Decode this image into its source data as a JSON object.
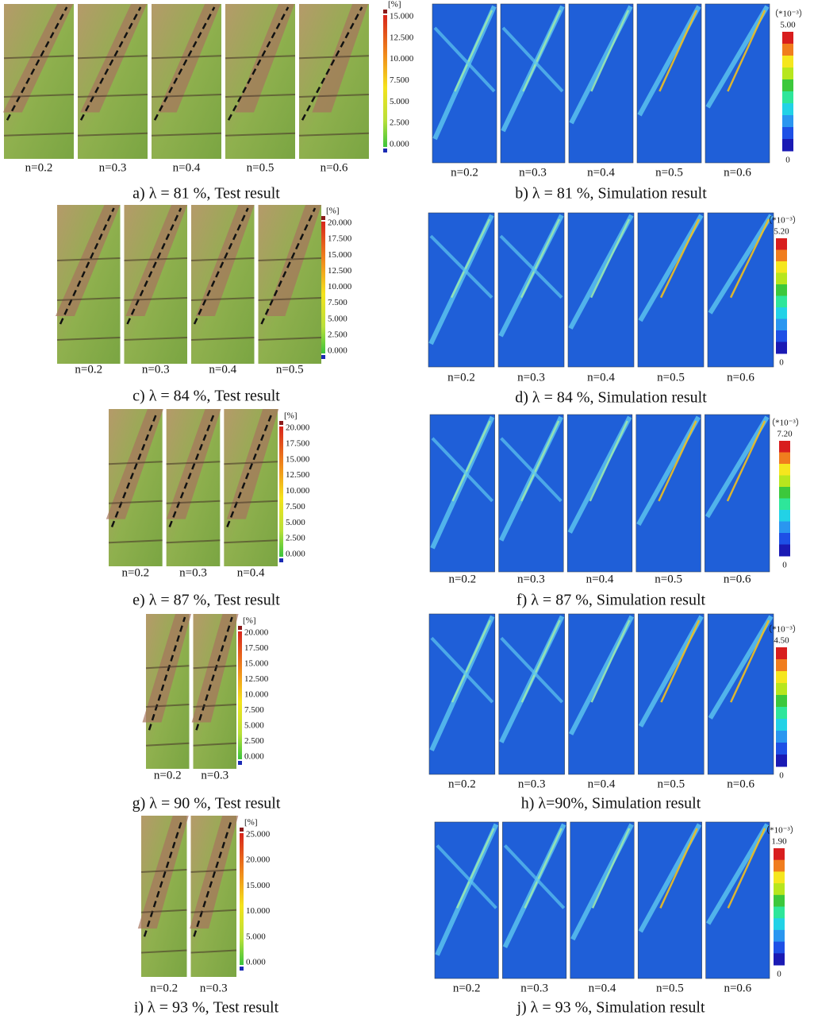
{
  "panels": [
    {
      "caption": "a) λ = 81 %, Test result",
      "images": [
        "n=0.2",
        "n=0.3",
        "n=0.4",
        "n=0.5",
        "n=0.6"
      ],
      "colorbar": {
        "unit": "[%]",
        "ticks": [
          "15.000",
          "12.500",
          "10.000",
          "7.500",
          "5.000",
          "2.500",
          "0.000"
        ]
      }
    },
    {
      "caption": "b) λ = 81 %, Simulation result",
      "images": [
        "n=0.2",
        "n=0.3",
        "n=0.4",
        "n=0.5",
        "n=0.6"
      ],
      "colorbar": {
        "unit": "（*10⁻³）",
        "max": "5.00",
        "min": "0"
      }
    },
    {
      "caption": "c) λ = 84 %, Test result",
      "images": [
        "n=0.2",
        "n=0.3",
        "n=0.4",
        "n=0.5"
      ],
      "colorbar": {
        "unit": "[%]",
        "ticks": [
          "20.000",
          "17.500",
          "15.000",
          "12.500",
          "10.000",
          "7.500",
          "5.000",
          "2.500",
          "0.000"
        ]
      }
    },
    {
      "caption": "d) λ = 84 %, Simulation result",
      "images": [
        "n=0.2",
        "n=0.3",
        "n=0.4",
        "n=0.5",
        "n=0.6"
      ],
      "colorbar": {
        "unit": "（*10⁻³）",
        "max": "5.20",
        "min": "0"
      }
    },
    {
      "caption": "e) λ = 87 %, Test result",
      "images": [
        "n=0.2",
        "n=0.3",
        "n=0.4"
      ],
      "colorbar": {
        "unit": "[%]",
        "ticks": [
          "20.000",
          "17.500",
          "15.000",
          "12.500",
          "10.000",
          "7.500",
          "5.000",
          "2.500",
          "0.000"
        ]
      }
    },
    {
      "caption": "f) λ = 87 %, Simulation result",
      "images": [
        "n=0.2",
        "n=0.3",
        "n=0.4",
        "n=0.5",
        "n=0.6"
      ],
      "colorbar": {
        "unit": "（*10⁻³）",
        "max": "7.20",
        "min": "0"
      }
    },
    {
      "caption": "g) λ = 90 %, Test result",
      "images": [
        "n=0.2",
        "n=0.3"
      ],
      "colorbar": {
        "unit": "[%]",
        "ticks": [
          "20.000",
          "17.500",
          "15.000",
          "12.500",
          "10.000",
          "7.500",
          "5.000",
          "2.500",
          "0.000"
        ]
      }
    },
    {
      "caption": "h) λ=90%, Simulation result",
      "images": [
        "n=0.2",
        "n=0.3",
        "n=0.4",
        "n=0.5",
        "n=0.6"
      ],
      "colorbar": {
        "unit": "（*10⁻³）",
        "max": "4.50",
        "min": "0"
      }
    },
    {
      "caption": "i) λ = 93 %, Test result",
      "images": [
        "n=0.2",
        "n=0.3"
      ],
      "colorbar": {
        "unit": "[%]",
        "ticks": [
          "25.000",
          "20.000",
          "15.000",
          "10.000",
          "5.000",
          "0.000"
        ]
      }
    },
    {
      "caption": "j) λ = 93 %, Simulation result",
      "images": [
        "n=0.2",
        "n=0.3",
        "n=0.4",
        "n=0.5",
        "n=0.6"
      ],
      "colorbar": {
        "unit": "（*10⁻³）",
        "max": "1.90",
        "min": "0"
      }
    }
  ]
}
